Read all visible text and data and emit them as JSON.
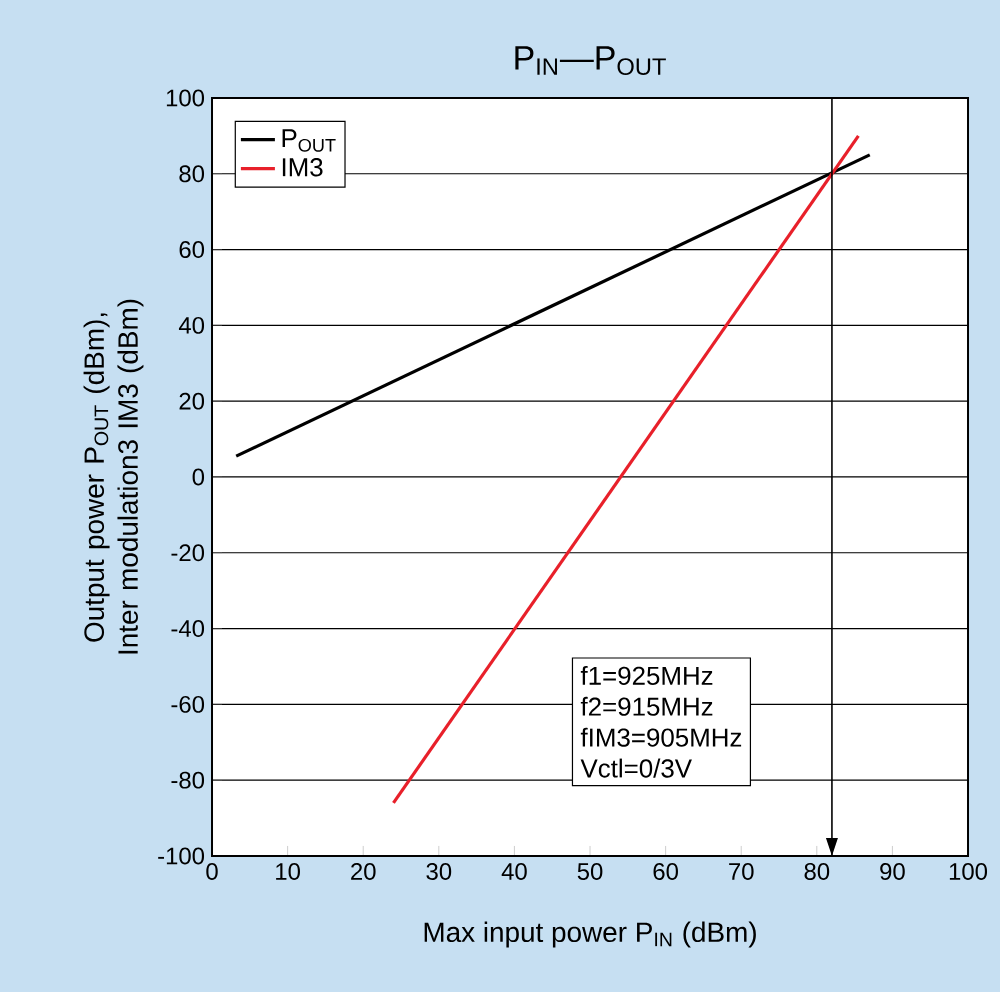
{
  "chart_data": {
    "type": "line",
    "title": "P$_{IN}$—P$_{OUT}$",
    "xlabel": "Max input power   P$_{IN}$  (dBm)",
    "ylabel": "Output power   P$_{OUT}$  (dBm), Inter modulation3  IM3  (dBm)",
    "xlim": [
      0,
      100
    ],
    "ylim": [
      -100,
      100
    ],
    "xticks": [
      0,
      10,
      20,
      30,
      40,
      50,
      60,
      70,
      80,
      90,
      100
    ],
    "yticks": [
      -100,
      -80,
      -60,
      -40,
      -20,
      0,
      20,
      40,
      60,
      80,
      100
    ],
    "grid": "y",
    "legend": "top left",
    "line_style": "solid",
    "marker": "none",
    "series": [
      {
        "name": "P$_{OUT}$",
        "color": "#000000",
        "x": [
          3.2,
          87
        ],
        "values": [
          5.5,
          85
        ]
      },
      {
        "name": "IM3",
        "color": "#e8202a",
        "x": [
          24,
          85.5
        ],
        "values": [
          -86,
          90
        ]
      }
    ],
    "ref_lines": [
      {
        "axis": "x",
        "value": 82,
        "color": "#000000"
      }
    ],
    "annotations": [
      "f1=925MHz",
      "f2=915MHz",
      "fIM3=905MHz",
      "Vctl=0/3V"
    ]
  }
}
